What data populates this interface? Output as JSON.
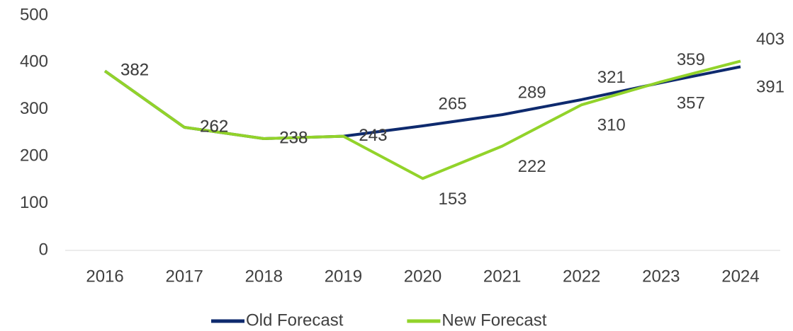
{
  "chart_data": {
    "type": "line",
    "categories": [
      "2016",
      "2017",
      "2018",
      "2019",
      "2020",
      "2021",
      "2022",
      "2023",
      "2024"
    ],
    "series": [
      {
        "name": "Old Forecast",
        "color": "#0e2a6e",
        "values": [
          382,
          262,
          238,
          243,
          265,
          289,
          321,
          357,
          391
        ]
      },
      {
        "name": "New Forecast",
        "color": "#92d32a",
        "values": [
          382,
          262,
          238,
          243,
          153,
          222,
          310,
          359,
          403
        ]
      }
    ],
    "ylim": [
      0,
      500
    ],
    "yticks": [
      0,
      100,
      200,
      300,
      400,
      500
    ],
    "grid": false,
    "legend": "bottom"
  }
}
